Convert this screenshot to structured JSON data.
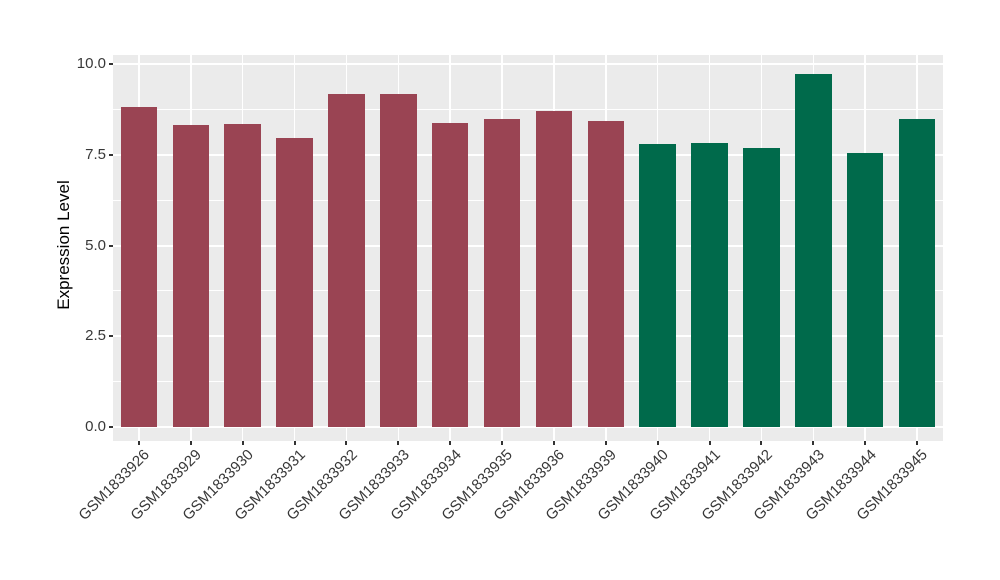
{
  "chart_data": {
    "type": "bar",
    "title": "",
    "xlabel": "",
    "ylabel": "Expression Level",
    "categories": [
      "GSM1833926",
      "GSM1833929",
      "GSM1833930",
      "GSM1833931",
      "GSM1833932",
      "GSM1833933",
      "GSM1833934",
      "GSM1833935",
      "GSM1833936",
      "GSM1833939",
      "GSM1833940",
      "GSM1833941",
      "GSM1833942",
      "GSM1833943",
      "GSM1833944",
      "GSM1833945"
    ],
    "values": [
      8.82,
      8.32,
      8.36,
      7.96,
      9.17,
      9.17,
      8.38,
      8.48,
      8.7,
      8.43,
      7.8,
      7.82,
      7.69,
      9.72,
      7.55,
      8.48
    ],
    "bar_colors": [
      "#9A4453",
      "#9A4453",
      "#9A4453",
      "#9A4453",
      "#9A4453",
      "#9A4453",
      "#9A4453",
      "#9A4453",
      "#9A4453",
      "#9A4453",
      "#006A4B",
      "#006A4B",
      "#006A4B",
      "#006A4B",
      "#006A4B",
      "#006A4B"
    ],
    "group_color_red": "#9A4453",
    "group_color_green": "#006A4B",
    "ylim": [
      0,
      10.3
    ],
    "ytick_labels": [
      "0.0",
      "2.5",
      "5.0",
      "7.5",
      "10.0"
    ],
    "ytick_values": [
      0,
      2.5,
      5,
      7.5,
      10
    ],
    "minor_tick_values": [
      1.25,
      3.75,
      6.25,
      8.75
    ],
    "grid": "major-and-minor",
    "legend_position": "none",
    "panel_background": "#EBEBEB",
    "grid_color": "#FFFFFF",
    "axis_text_color": "#383838",
    "tick_mark_color": "#333333"
  }
}
